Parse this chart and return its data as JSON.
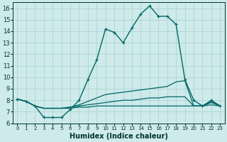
{
  "xlabel": "Humidex (Indice chaleur)",
  "ylabel": "",
  "background_color": "#ceeaea",
  "grid_color": "#aed4d4",
  "line_color": "#006666",
  "xlim": [
    -0.5,
    23.5
  ],
  "ylim": [
    6,
    16.5
  ],
  "yticks": [
    6,
    7,
    8,
    9,
    10,
    11,
    12,
    13,
    14,
    15,
    16
  ],
  "xticks": [
    0,
    1,
    2,
    3,
    4,
    5,
    6,
    7,
    8,
    9,
    10,
    11,
    12,
    13,
    14,
    15,
    16,
    17,
    18,
    19,
    20,
    21,
    22,
    23
  ],
  "series": [
    {
      "x": [
        0,
        1,
        2,
        3,
        4,
        5,
        6,
        7,
        8,
        9,
        10,
        11,
        12,
        13,
        14,
        15,
        16,
        17,
        18,
        19,
        20,
        21,
        22,
        23
      ],
      "y": [
        8.1,
        7.9,
        7.5,
        6.5,
        6.5,
        6.5,
        7.2,
        8.0,
        9.8,
        11.5,
        14.2,
        13.9,
        13.0,
        14.3,
        15.5,
        16.2,
        15.3,
        15.3,
        14.6,
        9.8,
        8.0,
        7.5,
        8.0,
        7.5
      ],
      "marker": true,
      "lw": 1.0
    },
    {
      "x": [
        0,
        1,
        2,
        3,
        4,
        5,
        6,
        7,
        8,
        9,
        10,
        11,
        12,
        13,
        14,
        15,
        16,
        17,
        18,
        19,
        20,
        21,
        22,
        23
      ],
      "y": [
        8.1,
        7.9,
        7.5,
        7.3,
        7.3,
        7.3,
        7.4,
        7.6,
        7.9,
        8.2,
        8.5,
        8.6,
        8.7,
        8.8,
        8.9,
        9.0,
        9.1,
        9.2,
        9.6,
        9.7,
        7.5,
        7.5,
        7.9,
        7.5
      ],
      "marker": false,
      "lw": 0.9
    },
    {
      "x": [
        0,
        1,
        2,
        3,
        4,
        5,
        6,
        7,
        8,
        9,
        10,
        11,
        12,
        13,
        14,
        15,
        16,
        17,
        18,
        19,
        20,
        21,
        22,
        23
      ],
      "y": [
        8.1,
        7.9,
        7.5,
        7.3,
        7.3,
        7.3,
        7.4,
        7.5,
        7.6,
        7.7,
        7.8,
        7.9,
        8.0,
        8.0,
        8.1,
        8.2,
        8.2,
        8.3,
        8.3,
        8.3,
        7.5,
        7.5,
        7.8,
        7.5
      ],
      "marker": false,
      "lw": 0.9
    },
    {
      "x": [
        0,
        1,
        2,
        3,
        4,
        5,
        6,
        7,
        8,
        9,
        10,
        11,
        12,
        13,
        14,
        15,
        16,
        17,
        18,
        19,
        20,
        21,
        22,
        23
      ],
      "y": [
        8.1,
        7.9,
        7.5,
        7.3,
        7.3,
        7.3,
        7.3,
        7.4,
        7.4,
        7.5,
        7.5,
        7.5,
        7.5,
        7.5,
        7.5,
        7.5,
        7.5,
        7.5,
        7.5,
        7.5,
        7.5,
        7.5,
        7.6,
        7.5
      ],
      "marker": false,
      "lw": 0.9
    }
  ]
}
